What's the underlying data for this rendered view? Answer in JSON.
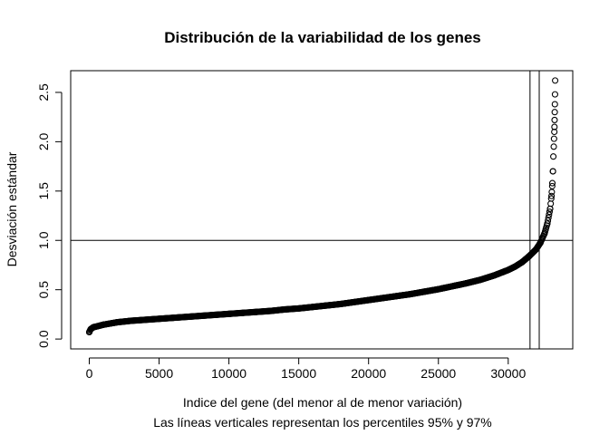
{
  "chart_data": {
    "type": "scatter",
    "title": "Distribución de la variabilidad de los genes",
    "xlabel": "Indice del gene (del menor al de menor variación)",
    "sublabel": "Las líneas verticales representan los percentiles 95% y 97%",
    "ylabel": "Desviación estándar",
    "xlim": [
      -1330,
      34620
    ],
    "ylim": [
      -0.1,
      2.72
    ],
    "x_ticks": [
      0,
      5000,
      10000,
      15000,
      20000,
      25000,
      30000
    ],
    "y_ticks": [
      0.0,
      0.5,
      1.0,
      1.5,
      2.0,
      2.5
    ],
    "x_tick_labels": [
      "0",
      "5000",
      "10000",
      "15000",
      "20000",
      "25000",
      "30000"
    ],
    "y_tick_labels": [
      "0.0",
      "0.5",
      "1.0",
      "1.5",
      "2.0",
      "2.5"
    ],
    "hline": 1.0,
    "vlines": [
      31560,
      32220
    ],
    "marker": "open-circle",
    "series": [
      {
        "x": [
          0,
          100,
          300,
          600,
          1000,
          2000,
          3000,
          4000,
          5000,
          6000,
          7000,
          8000,
          9000,
          10000,
          11000,
          12000,
          13000,
          14000,
          15000,
          16000,
          17000,
          18000,
          19000,
          20000,
          21000,
          22000,
          23000,
          24000,
          25000,
          26000,
          27000,
          28000,
          29000,
          30000,
          30500,
          31000,
          31500,
          32000,
          32300,
          32600,
          32800,
          33000,
          33100,
          33150,
          33200,
          33230,
          33260,
          33280,
          33300,
          33310,
          33320,
          33330,
          33340,
          33350,
          33360
        ],
        "y": [
          0.07,
          0.1,
          0.12,
          0.13,
          0.145,
          0.17,
          0.185,
          0.195,
          0.205,
          0.215,
          0.225,
          0.235,
          0.245,
          0.255,
          0.265,
          0.275,
          0.285,
          0.3,
          0.31,
          0.325,
          0.34,
          0.355,
          0.375,
          0.395,
          0.415,
          0.435,
          0.455,
          0.48,
          0.505,
          0.535,
          0.565,
          0.6,
          0.645,
          0.7,
          0.735,
          0.78,
          0.84,
          0.91,
          0.975,
          1.07,
          1.17,
          1.32,
          1.45,
          1.55,
          1.7,
          1.85,
          1.95,
          2.03,
          2.1,
          2.15,
          2.22,
          2.3,
          2.38,
          2.48,
          2.62
        ]
      }
    ]
  }
}
